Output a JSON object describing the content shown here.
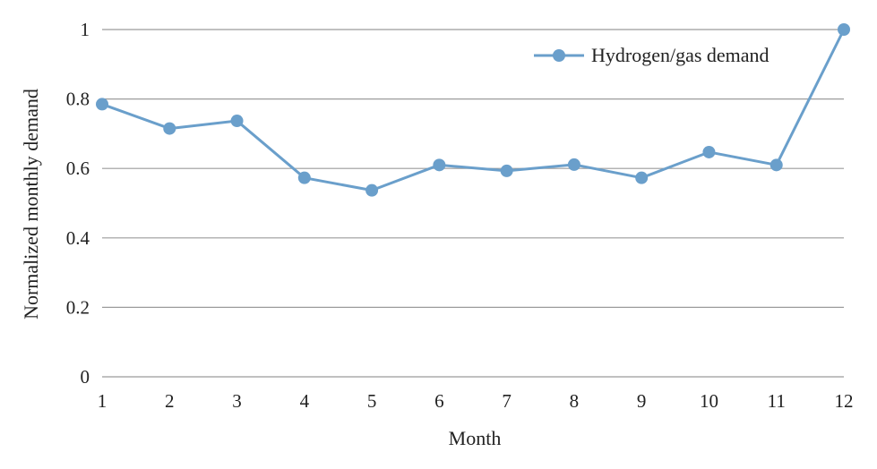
{
  "chart_data": {
    "type": "line",
    "title": "",
    "xlabel": "Month",
    "ylabel": "Normalized monthly demand",
    "x": [
      "1",
      "2",
      "3",
      "4",
      "5",
      "6",
      "7",
      "8",
      "9",
      "10",
      "11",
      "12"
    ],
    "ylim": [
      0,
      1
    ],
    "yticks": [
      "0",
      "0.2",
      "0.4",
      "0.6",
      "0.8",
      "1"
    ],
    "grid": true,
    "legend_position": "top-right",
    "series": [
      {
        "name": "Hydrogen/gas demand",
        "color": "#6a9fcb",
        "values": [
          0.785,
          0.715,
          0.737,
          0.573,
          0.537,
          0.61,
          0.593,
          0.611,
          0.573,
          0.647,
          0.61,
          1.0
        ]
      }
    ]
  }
}
